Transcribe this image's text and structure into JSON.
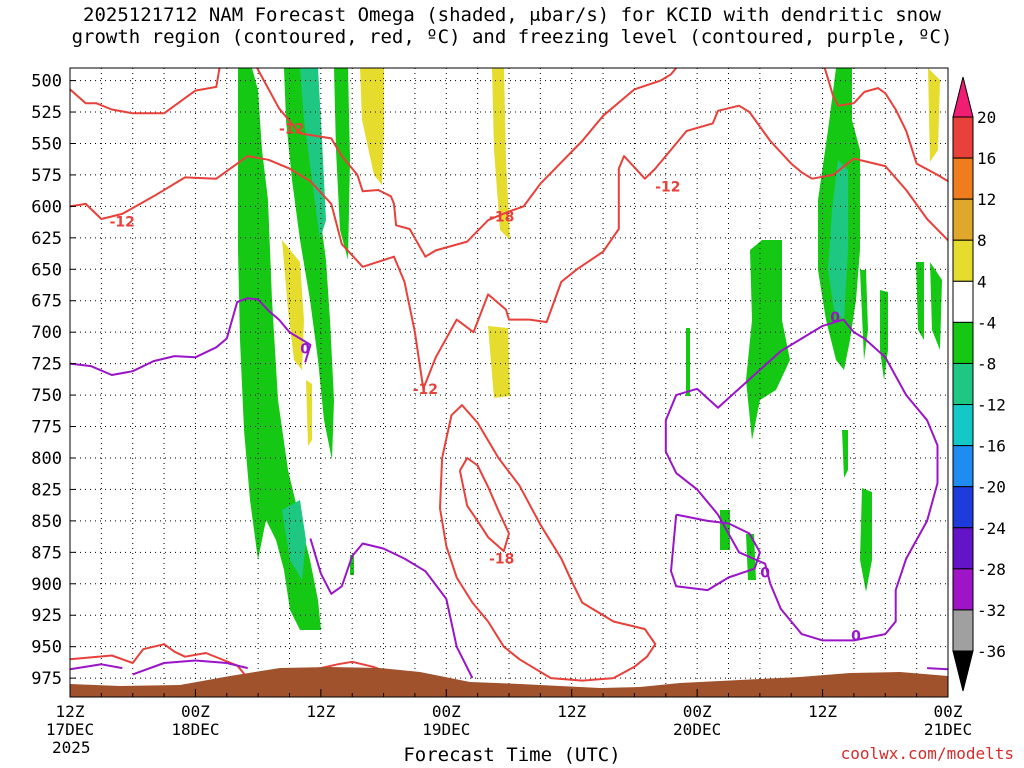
{
  "title_line1": "2025121712 NAM Forecast Omega (shaded, μbar/s) for KCID with dendritic snow",
  "title_line2": "growth region (contoured, red, ºC) and freezing level (contoured, purple, ºC)",
  "credit": "coolwx.com/modelts",
  "chart_data": {
    "type": "heatmap",
    "xlabel": "Forecast Time (UTC)",
    "x_ticks": [
      {
        "hour": 0,
        "lines": [
          "12Z",
          "17DEC",
          "2025"
        ]
      },
      {
        "hour": 12,
        "lines": [
          "00Z",
          "18DEC"
        ]
      },
      {
        "hour": 24,
        "lines": [
          "12Z"
        ]
      },
      {
        "hour": 36,
        "lines": [
          "00Z",
          "19DEC"
        ]
      },
      {
        "hour": 48,
        "lines": [
          "12Z"
        ]
      },
      {
        "hour": 60,
        "lines": [
          "00Z",
          "20DEC"
        ]
      },
      {
        "hour": 72,
        "lines": [
          "12Z"
        ]
      },
      {
        "hour": 84,
        "lines": [
          "00Z",
          "21DEC"
        ]
      }
    ],
    "xlim": [
      0,
      84
    ],
    "ylim": [
      990,
      490
    ],
    "y_ticks": [
      500,
      525,
      550,
      575,
      600,
      625,
      650,
      675,
      700,
      725,
      750,
      775,
      800,
      825,
      850,
      875,
      900,
      925,
      950,
      975
    ],
    "grid": true,
    "colorbar": {
      "labels": [
        "20",
        "16",
        "12",
        "8",
        "4",
        "-4",
        "-8",
        "-12",
        "-16",
        "-20",
        "-24",
        "-28",
        "-32",
        "-36"
      ],
      "bins": [
        {
          "color": "#f01e73"
        },
        {
          "color": "#e8403a"
        },
        {
          "color": "#ef7d1e"
        },
        {
          "color": "#e0a82a"
        },
        {
          "color": "#e6dc2e"
        },
        {
          "color": "#ffffff"
        },
        {
          "color": "#14c814"
        },
        {
          "color": "#1ec882"
        },
        {
          "color": "#14c8c8"
        },
        {
          "color": "#1e8cf0"
        },
        {
          "color": "#1e3cdc"
        },
        {
          "color": "#6414c8"
        },
        {
          "color": "#a014c8"
        },
        {
          "color": "#a0a0a0"
        }
      ]
    },
    "contour_labels": [
      {
        "text": "-12",
        "hour": 5.0,
        "p": 612,
        "color": "#e8403a"
      },
      {
        "text": "-12",
        "hour": 21.2,
        "p": 538,
        "color": "#e8403a"
      },
      {
        "text": "-18",
        "hour": 41.3,
        "p": 608,
        "color": "#e8403a"
      },
      {
        "text": "-12",
        "hour": 34.0,
        "p": 745,
        "color": "#e8403a"
      },
      {
        "text": "-12",
        "hour": 57.2,
        "p": 584,
        "color": "#e8403a"
      },
      {
        "text": "-18",
        "hour": 41.3,
        "p": 880,
        "color": "#e8403a"
      },
      {
        "text": "0",
        "hour": 22.5,
        "p": 713,
        "color": "#9a14c8"
      },
      {
        "text": "0",
        "hour": 66.5,
        "p": 891,
        "color": "#9a14c8"
      },
      {
        "text": "0",
        "hour": 75.2,
        "p": 941,
        "color": "#9a14c8"
      },
      {
        "text": "0",
        "hour": 73.2,
        "p": 688,
        "color": "#9a14c8"
      }
    ],
    "series": [
      {
        "color": "#e8403a",
        "points": [
          [
            0,
            600
          ],
          [
            1.5,
            598
          ],
          [
            3,
            610
          ],
          [
            5,
            606
          ],
          [
            8,
            592
          ],
          [
            11,
            577
          ],
          [
            14,
            578
          ],
          [
            17,
            560
          ],
          [
            19,
            563
          ],
          [
            21,
            570
          ],
          [
            23,
            580
          ],
          [
            25,
            598
          ],
          [
            26,
            630
          ],
          [
            28,
            648
          ],
          [
            31,
            640
          ],
          [
            32,
            660
          ],
          [
            33,
            700
          ],
          [
            33.8,
            745
          ],
          [
            35,
            720
          ],
          [
            37,
            690
          ],
          [
            38.6,
            700
          ],
          [
            40,
            670
          ],
          [
            41.7,
            682
          ],
          [
            42,
            690
          ],
          [
            44,
            690
          ],
          [
            45.6,
            692
          ],
          [
            47,
            660
          ],
          [
            48.5,
            650
          ],
          [
            51,
            636
          ],
          [
            52.5,
            618
          ],
          [
            52.5,
            570
          ],
          [
            53,
            560
          ],
          [
            55,
            578
          ],
          [
            56,
            570
          ],
          [
            59,
            540
          ],
          [
            61.5,
            534
          ],
          [
            62,
            524
          ],
          [
            64,
            520
          ],
          [
            65,
            525
          ],
          [
            67,
            548
          ],
          [
            69,
            566
          ],
          [
            70,
            573
          ],
          [
            71,
            578
          ],
          [
            73,
            575
          ],
          [
            75,
            562
          ],
          [
            78,
            568
          ],
          [
            80,
            587
          ],
          [
            82,
            610
          ],
          [
            84,
            627
          ]
        ]
      },
      {
        "color": "#e8403a",
        "points": [
          [
            0,
            960
          ],
          [
            4,
            957
          ],
          [
            6,
            963
          ],
          [
            7,
            952
          ],
          [
            9,
            948
          ],
          [
            10,
            954
          ],
          [
            11,
            958
          ],
          [
            13,
            955
          ],
          [
            16,
            965
          ],
          [
            17,
            975
          ],
          [
            18,
            974
          ],
          [
            22,
            969
          ],
          [
            24,
            967
          ],
          [
            25.6,
            964
          ],
          [
            27,
            962
          ],
          [
            29,
            966
          ],
          [
            31,
            972
          ],
          [
            33,
            972
          ],
          [
            34,
            988
          ]
        ]
      },
      {
        "color": "#e8403a",
        "points": [
          [
            0,
            507
          ],
          [
            1.5,
            518
          ],
          [
            2.5,
            518
          ],
          [
            4,
            523
          ],
          [
            6,
            526
          ],
          [
            9,
            526
          ],
          [
            12,
            508
          ],
          [
            14,
            505
          ],
          [
            14.3,
            490
          ]
        ]
      },
      {
        "color": "#e8403a",
        "points": [
          [
            17.9,
            490
          ],
          [
            20,
            522
          ],
          [
            22,
            542
          ],
          [
            25,
            546
          ],
          [
            26,
            560
          ],
          [
            27.5,
            575
          ],
          [
            28,
            588
          ],
          [
            29.5,
            587
          ],
          [
            30.7,
            592
          ],
          [
            31,
            598
          ],
          [
            31.2,
            615
          ],
          [
            32.5,
            618
          ],
          [
            34,
            640
          ],
          [
            35,
            635
          ],
          [
            38,
            628
          ],
          [
            40,
            611
          ],
          [
            42,
            604
          ],
          [
            43.4,
            600
          ],
          [
            45,
            582
          ],
          [
            47,
            565
          ],
          [
            49,
            548
          ],
          [
            51,
            528
          ],
          [
            54,
            507
          ],
          [
            56.5,
            500
          ],
          [
            57.5,
            495
          ],
          [
            58,
            490
          ]
        ]
      },
      {
        "color": "#e8403a",
        "points": [
          [
            72.2,
            490
          ],
          [
            72.5,
            498
          ],
          [
            73,
            512
          ],
          [
            73.5,
            520
          ],
          [
            75,
            518
          ],
          [
            76,
            509
          ],
          [
            77.3,
            506
          ],
          [
            78,
            510
          ],
          [
            79,
            523
          ],
          [
            80,
            540
          ],
          [
            81,
            566
          ],
          [
            83,
            575
          ],
          [
            84,
            580
          ]
        ]
      },
      {
        "color": "#e8403a",
        "points": [
          [
            35.6,
            800
          ],
          [
            36.5,
            766
          ],
          [
            37.5,
            758
          ],
          [
            39,
            772
          ],
          [
            41,
            800
          ],
          [
            43,
            822
          ],
          [
            45,
            853
          ],
          [
            47,
            880
          ],
          [
            48,
            898
          ],
          [
            49,
            915
          ],
          [
            52,
            930
          ],
          [
            55,
            936
          ],
          [
            56,
            948
          ],
          [
            55.2,
            958
          ],
          [
            54,
            966
          ],
          [
            52,
            975
          ],
          [
            49,
            977
          ],
          [
            46,
            975
          ],
          [
            43,
            960
          ],
          [
            41.5,
            950
          ],
          [
            40,
            930
          ],
          [
            38.5,
            915
          ],
          [
            37,
            895
          ],
          [
            36,
            870
          ],
          [
            35.4,
            840
          ],
          [
            35.6,
            800
          ]
        ]
      },
      {
        "color": "#e8403a",
        "points": [
          [
            37.3,
            810
          ],
          [
            38,
            800
          ],
          [
            39,
            806
          ],
          [
            40,
            823
          ],
          [
            41,
            842
          ],
          [
            42,
            860
          ],
          [
            41.5,
            874
          ],
          [
            40,
            863
          ],
          [
            39,
            850
          ],
          [
            38,
            838
          ],
          [
            37.3,
            810
          ]
        ]
      },
      {
        "color": "#9a14c8",
        "points": [
          [
            0,
            725
          ],
          [
            2,
            727
          ],
          [
            4,
            734
          ],
          [
            6,
            731
          ],
          [
            8,
            723
          ],
          [
            10,
            719
          ],
          [
            12,
            720
          ],
          [
            14,
            712
          ],
          [
            15,
            705
          ],
          [
            16,
            676
          ],
          [
            17,
            673
          ],
          [
            18,
            674
          ],
          [
            19,
            683
          ],
          [
            20,
            690
          ],
          [
            21,
            700
          ],
          [
            22,
            705
          ],
          [
            23,
            710
          ],
          [
            22.5,
            724
          ]
        ]
      },
      {
        "color": "#9a14c8",
        "points": [
          [
            23,
            864
          ],
          [
            24,
            892
          ],
          [
            25,
            908
          ],
          [
            26,
            902
          ],
          [
            27,
            878
          ],
          [
            28,
            868
          ],
          [
            30,
            872
          ],
          [
            32,
            880
          ],
          [
            34,
            890
          ],
          [
            36,
            912
          ],
          [
            37,
            950
          ],
          [
            38.5,
            975
          ]
        ]
      },
      {
        "color": "#9a14c8",
        "points": [
          [
            0,
            968
          ],
          [
            3,
            964
          ],
          [
            5,
            967
          ]
        ]
      },
      {
        "color": "#9a14c8",
        "points": [
          [
            6,
            972
          ],
          [
            9,
            963
          ],
          [
            12,
            961
          ],
          [
            15,
            963
          ],
          [
            17,
            967
          ]
        ]
      },
      {
        "color": "#9a14c8",
        "points": [
          [
            82,
            967
          ],
          [
            84,
            968
          ]
        ]
      },
      {
        "color": "#9a14c8",
        "points": [
          [
            58,
            845
          ],
          [
            61,
            850
          ],
          [
            63,
            852
          ],
          [
            65,
            860
          ],
          [
            66,
            875
          ],
          [
            65.5,
            888
          ],
          [
            63,
            895
          ],
          [
            61,
            905
          ],
          [
            58,
            902
          ],
          [
            57.5,
            890
          ],
          [
            58,
            845
          ]
        ]
      },
      {
        "color": "#9a14c8",
        "points": [
          [
            62,
            845
          ],
          [
            63,
            860
          ],
          [
            64,
            875
          ],
          [
            66.5,
            884
          ],
          [
            67,
            900
          ],
          [
            68,
            920
          ],
          [
            70,
            940
          ],
          [
            72,
            945
          ],
          [
            75,
            945
          ],
          [
            78,
            940
          ],
          [
            79,
            930
          ],
          [
            79,
            905
          ],
          [
            80,
            880
          ],
          [
            82,
            850
          ],
          [
            83,
            820
          ],
          [
            83,
            790
          ],
          [
            82,
            770
          ],
          [
            80,
            750
          ],
          [
            78,
            720
          ],
          [
            76,
            705
          ],
          [
            75,
            700
          ],
          [
            74,
            690
          ],
          [
            72,
            695
          ],
          [
            70,
            705
          ],
          [
            68,
            715
          ],
          [
            66,
            730
          ],
          [
            64,
            745
          ],
          [
            62,
            760
          ],
          [
            60,
            745
          ],
          [
            58,
            750
          ],
          [
            57,
            770
          ],
          [
            57,
            795
          ],
          [
            58,
            812
          ],
          [
            60,
            825
          ],
          [
            62,
            845
          ]
        ]
      }
    ]
  }
}
